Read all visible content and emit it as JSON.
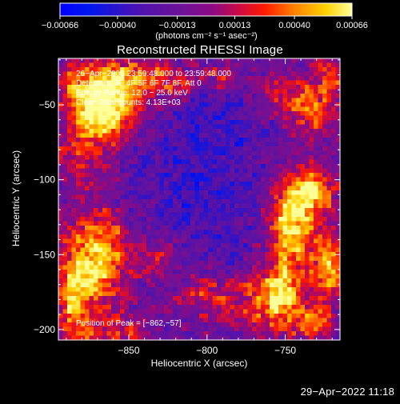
{
  "chart_data": {
    "type": "heatmap",
    "title": "Reconstructed RHESSI Image",
    "xlabel": "Heliocentric X (arcsec)",
    "ylabel": "Heliocentric Y (arcsec)",
    "xlim": [
      -895,
      -715
    ],
    "ylim": [
      -207,
      -19
    ],
    "x_ticks": [
      -850,
      -800,
      -750
    ],
    "x_tick_labels": [
      "−850",
      "−800",
      "−750"
    ],
    "y_ticks": [
      -50,
      -100,
      -150,
      -200
    ],
    "y_tick_labels": [
      "−50",
      "−100",
      "−150",
      "−200"
    ],
    "colorbar": {
      "ticks": [
        -0.00066,
        -0.0004,
        -0.00013,
        0.00013,
        0.0004,
        0.00066
      ],
      "tick_labels": [
        "−0.00066",
        "−0.00040",
        "−0.00013",
        "0.00013",
        "0.00040",
        "0.00066"
      ],
      "units_label": "(photons cm⁻² s⁻¹ asec⁻²)",
      "stops": [
        [
          "#0000ff",
          0
        ],
        [
          "#0016ee",
          0.1
        ],
        [
          "#5012ad",
          0.28
        ],
        [
          "#6e1296",
          0.42
        ],
        [
          "#8b0a84",
          0.52
        ],
        [
          "#cf0b3e",
          0.62
        ],
        [
          "#ff1a00",
          0.7
        ],
        [
          "#ff7f00",
          0.8
        ],
        [
          "#ffd200",
          0.91
        ],
        [
          "#ffff9a",
          1
        ]
      ]
    },
    "info": [
      "26−Apr−2005 23:59:48.000 to 23:59:48.000",
      "Detectors: 3F 4F 5F 6F 7F 8F, Att 0",
      "Energy Range: 12.0 − 25.0 keV",
      "Clean     Total counts: 4.13E+03"
    ],
    "peak_label": "Position of Peak = [−862,−57]",
    "peak": [
      -862,
      -57
    ],
    "blobs": [
      {
        "x": -863,
        "y": -56,
        "a": 1.3,
        "sx": 11,
        "sy": 14
      },
      {
        "x": -875,
        "y": -38,
        "a": 0.9,
        "sx": 16,
        "sy": 12
      },
      {
        "x": -845,
        "y": -33,
        "a": 0.85,
        "sx": 14,
        "sy": 10
      },
      {
        "x": -818,
        "y": -35,
        "a": 0.55,
        "sx": 9,
        "sy": 7
      },
      {
        "x": -883,
        "y": -78,
        "a": 0.6,
        "sx": 10,
        "sy": 18
      },
      {
        "x": -868,
        "y": -152,
        "a": 1.1,
        "sx": 13,
        "sy": 22
      },
      {
        "x": -885,
        "y": -182,
        "a": 0.9,
        "sx": 9,
        "sy": 25
      },
      {
        "x": -857,
        "y": -200,
        "a": 0.55,
        "sx": 12,
        "sy": 7
      },
      {
        "x": -833,
        "y": -150,
        "a": 0.4,
        "sx": 10,
        "sy": 9
      },
      {
        "x": -800,
        "y": -178,
        "a": 0.55,
        "sx": 14,
        "sy": 10
      },
      {
        "x": -770,
        "y": -182,
        "a": 0.5,
        "sx": 10,
        "sy": 14
      },
      {
        "x": -747,
        "y": -132,
        "a": 1.2,
        "sx": 11,
        "sy": 22
      },
      {
        "x": -733,
        "y": -108,
        "a": 1.0,
        "sx": 10,
        "sy": 13
      },
      {
        "x": -753,
        "y": -177,
        "a": 1.1,
        "sx": 9,
        "sy": 13
      },
      {
        "x": -722,
        "y": -158,
        "a": 0.95,
        "sx": 8,
        "sy": 17
      },
      {
        "x": -735,
        "y": -195,
        "a": 0.7,
        "sx": 12,
        "sy": 8
      },
      {
        "x": -733,
        "y": -54,
        "a": 0.75,
        "sx": 11,
        "sy": 11
      },
      {
        "x": -752,
        "y": -42,
        "a": 0.6,
        "sx": 10,
        "sy": 9
      },
      {
        "x": -720,
        "y": -32,
        "a": 0.55,
        "sx": 9,
        "sy": 10
      },
      {
        "x": -790,
        "y": -30,
        "a": 0.45,
        "sx": 9,
        "sy": 7
      },
      {
        "x": -800,
        "y": -110,
        "a": -0.35,
        "sx": 35,
        "sy": 35
      },
      {
        "x": -795,
        "y": -60,
        "a": -0.2,
        "sx": 20,
        "sy": 20
      }
    ]
  },
  "timestamp": "29−Apr−2022 11:18"
}
